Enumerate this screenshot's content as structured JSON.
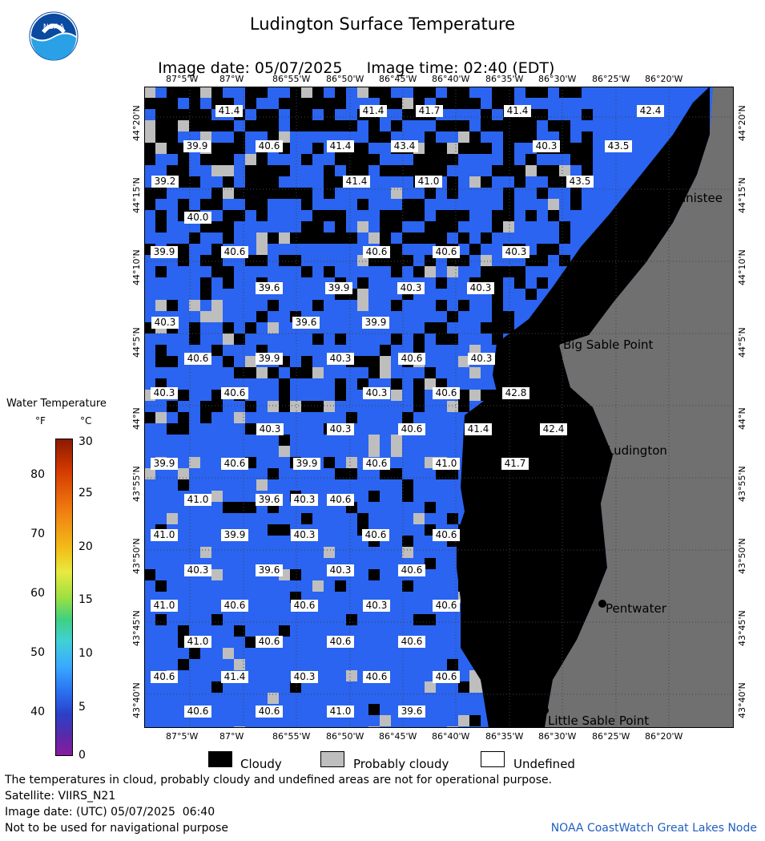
{
  "header": {
    "title": "Ludington Surface Temperature",
    "image_date_label": "Image date: 05/07/2025",
    "image_time_label": "Image time: 02:40 (EDT)"
  },
  "legend": {
    "title": "Water Temperature",
    "unit_f": "°F",
    "unit_c": "°C",
    "ticks_f": [
      "80",
      "70",
      "60",
      "50",
      "40"
    ],
    "ticks_c": [
      "30",
      "25",
      "20",
      "15",
      "10",
      "5",
      "0"
    ]
  },
  "map": {
    "lon_labels": [
      "87°5'W",
      "87°W",
      "86°55'W",
      "86°50'W",
      "86°45'W",
      "86°40'W",
      "86°35'W",
      "86°30'W",
      "86°25'W",
      "86°20'W"
    ],
    "lat_labels": [
      "44°20'N",
      "44°15'N",
      "44°10'N",
      "44°5'N",
      "44°N",
      "43°55'N",
      "43°50'N",
      "43°45'N",
      "43°40'N"
    ],
    "places": [
      "Manistee",
      "Big Sable Point",
      "Ludington",
      "Pentwater",
      "Little Sable Point"
    ],
    "temps": [
      [
        "41.4",
        "41.4",
        "41.7",
        "41.4",
        "42.4"
      ],
      [
        "39.9",
        "40.6",
        "41.4",
        "43.4",
        "40.3",
        "43.5"
      ],
      [
        "39.2",
        "41.4",
        "41.0",
        "43.5"
      ],
      [
        "40.0"
      ],
      [
        "39.9",
        "40.6",
        "40.6",
        "40.6",
        "40.3"
      ],
      [
        "39.6",
        "39.9",
        "40.3",
        "40.3"
      ],
      [
        "40.3",
        "39.6",
        "39.9"
      ],
      [
        "40.6",
        "39.9",
        "40.3",
        "40.6",
        "40.3"
      ],
      [
        "40.3",
        "40.6",
        "40.3",
        "40.6",
        "42.8"
      ],
      [
        "40.3",
        "40.3",
        "40.6",
        "41.4",
        "42.4"
      ],
      [
        "39.9",
        "40.6",
        "39.9",
        "40.6",
        "41.0",
        "41.7"
      ],
      [
        "41.0",
        "39.6",
        "40.3",
        "40.6"
      ],
      [
        "41.0",
        "39.9",
        "40.3",
        "40.6",
        "40.6"
      ],
      [
        "40.3",
        "39.6",
        "40.3",
        "40.6"
      ],
      [
        "41.0",
        "40.6",
        "40.6",
        "40.3",
        "40.6"
      ],
      [
        "41.0",
        "40.6",
        "40.6",
        "40.6"
      ],
      [
        "40.6",
        "41.4",
        "40.3",
        "40.6",
        "40.6"
      ],
      [
        "40.6",
        "40.6",
        "41.0",
        "39.6"
      ]
    ]
  },
  "key": {
    "cloudy": "Cloudy",
    "probably_cloudy": "Probably cloudy",
    "undefined": "Undefined"
  },
  "footer": {
    "disclaimer": "The temperatures in cloud, probably cloudy and undefined areas are not for operational purpose.",
    "satellite": "Satellite: VIIRS_N21",
    "utc_date": "Image date: (UTC) 05/07/2025  06:40",
    "nav_warning": "Not to be used for navigational purpose",
    "credit": "NOAA CoastWatch Great Lakes Node"
  },
  "colors": {
    "water": "#2a64f0",
    "cloud": "#000000",
    "probably_cloud": "#bebebe",
    "land": "#707070"
  }
}
